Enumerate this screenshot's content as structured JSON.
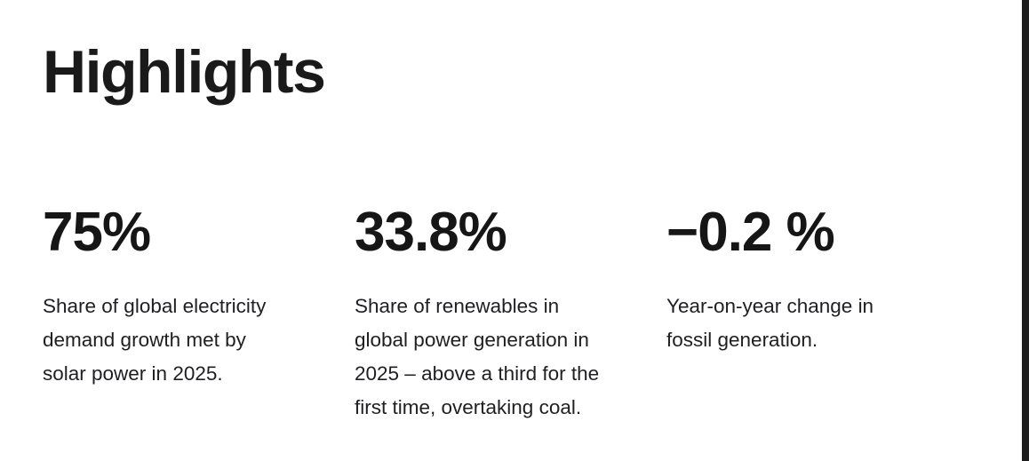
{
  "page": {
    "background_color": "#ffffff",
    "edge_bar_color": "#1e1e1e",
    "text_color": "#1a1a1a"
  },
  "header": {
    "title": "Highlights"
  },
  "stats": [
    {
      "value": "75%",
      "description": "Share of global electricity\ndemand growth met by\nsolar power in 2025."
    },
    {
      "value": "33.8%",
      "description": "Share of renewables in\nglobal power generation in\n2025 – above a third for the\nfirst time, overtaking coal."
    },
    {
      "value": "−0.2 %",
      "description": "Year-on-year change in\nfossil generation."
    }
  ]
}
